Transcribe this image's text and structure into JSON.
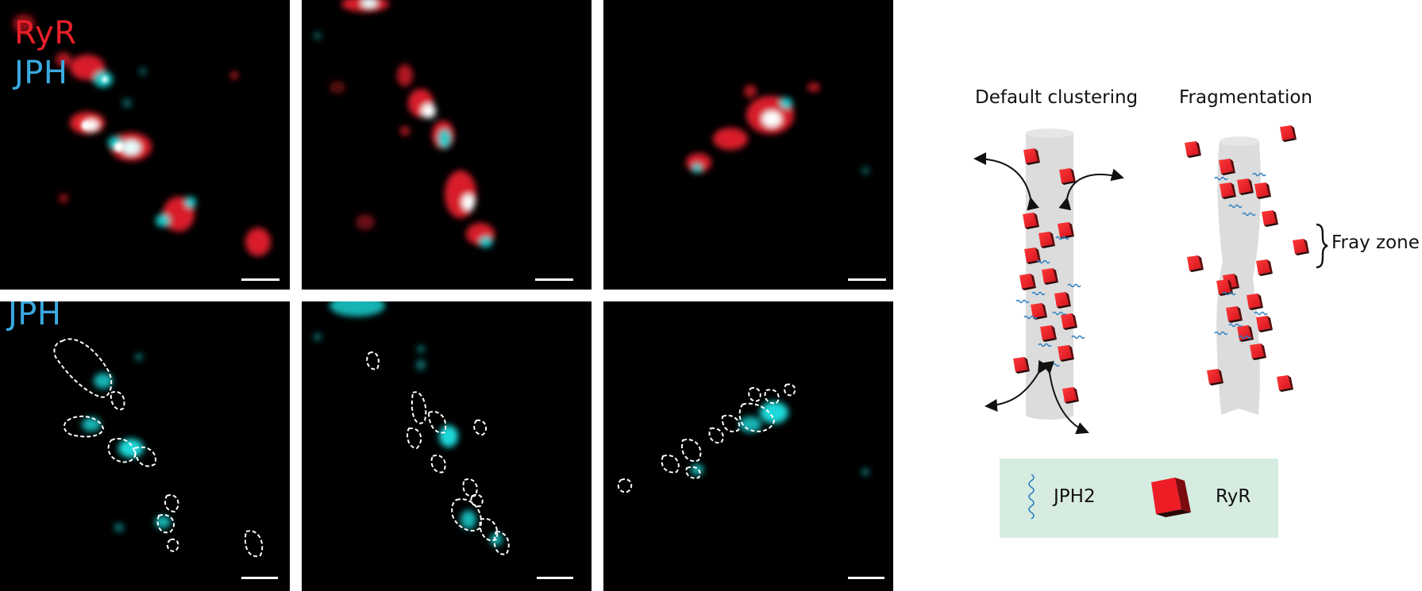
{
  "panels": {
    "top_label_ryr": "RyR",
    "top_label_jph": "JPH",
    "bottom_label_jph": "JPH"
  },
  "diagram": {
    "title_left": "Default clustering",
    "title_right": "Fragmentation",
    "fray_label": "Fray zone"
  },
  "legend": {
    "jph2_label": "JPH2",
    "ryr_label": "RyR"
  },
  "colors": {
    "ryr": "#e8202a",
    "jph": "#3aa9e0",
    "jph_image": "#19d2d2",
    "legend_bg": "#d6ece1",
    "tubule": "#dcdcdc"
  }
}
